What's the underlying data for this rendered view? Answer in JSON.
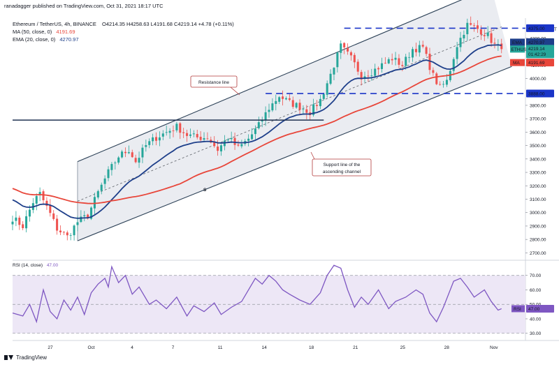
{
  "header": {
    "publisher": "ranadagger published on TradingView.com, Oct 31, 2021 18:17 UTC",
    "symbol_line": "Ethereum / TetherUS, 4h, BINANCE",
    "ohlc": "O4214.35  H4258.63  L4191.68  C4219.14  +4.78 (+0.11%)",
    "ma_line": "MA (50, close, 0)",
    "ma_value": "4191.69",
    "ema_line": "EMA (20, close, 0)",
    "ema_value": "4270.97"
  },
  "rsi_header": {
    "label": "RSI (14, close)",
    "value": "47.00"
  },
  "footer": {
    "brand": "TradingView"
  },
  "price_panel": {
    "currency": "USDT",
    "yticks": [
      2700,
      2800,
      2900,
      3000,
      3100,
      3200,
      3300,
      3400,
      3500,
      3600,
      3700,
      3800,
      4000,
      4100,
      4200,
      4300
    ],
    "yticks_labels": [
      "2700.00",
      "2800.00",
      "2900.00",
      "3000.00",
      "3100.00",
      "3200.00",
      "3300.00",
      "3400.00",
      "3500.00",
      "3600.00",
      "3700.00",
      "3800.00",
      "4000.00",
      "4100.00",
      "4200.00",
      "4300.00"
    ],
    "badges": {
      "level_high": "4375.00",
      "ema_tag": "EMA",
      "ema_value": "4270.97",
      "symbol_tag": "ETHUSDT",
      "price": "4219.14",
      "countdown": "01:42:29",
      "ma_tag": "MA",
      "ma_value": "4191.69",
      "level_low": "3888.00"
    },
    "annotations": {
      "resistance": "Resistance line",
      "support_l1": "Support line of the",
      "support_l2": "ascending channel",
      "s_mark": "S"
    }
  },
  "rsi_panel": {
    "yticks": [
      30,
      40,
      50,
      60,
      70
    ],
    "yticks_labels": [
      "30.00",
      "40.00",
      "50.00",
      "60.00",
      "70.00"
    ],
    "badge_tag": "RSI",
    "badge_value": "47.00"
  },
  "x_axis": {
    "labels": [
      "27",
      "Oct",
      "4",
      "7",
      "11",
      "14",
      "18",
      "21",
      "25",
      "28",
      "Nov",
      "4"
    ]
  },
  "colors": {
    "up": "#26a69a",
    "down": "#ef5350",
    "ema": "#1e3f8a",
    "ma": "#e8463a",
    "level_line": "#1a35c8",
    "channel_fill": "#e8eaf0",
    "channel_line": "#2a3f55",
    "rsi": "#7e57c2",
    "rsi_band": "#ede7f6",
    "annotation": "#b33a3a"
  },
  "chart_data": [
    {
      "type": "candlestick",
      "title": "Ethereum / TetherUS, 4h, BINANCE",
      "ylabel": "USDT",
      "ylim": [
        2650,
        4450
      ],
      "x_labels": [
        "27",
        "Oct",
        "4",
        "7",
        "11",
        "14",
        "18",
        "21",
        "25",
        "28",
        "Nov",
        "4"
      ],
      "close_anchors": [
        {
          "t": 0,
          "v": 2960
        },
        {
          "t": 3,
          "v": 2900
        },
        {
          "t": 6,
          "v": 3080
        },
        {
          "t": 8,
          "v": 3140
        },
        {
          "t": 11,
          "v": 2990
        },
        {
          "t": 13,
          "v": 2880
        },
        {
          "t": 16,
          "v": 2820
        },
        {
          "t": 19,
          "v": 2930
        },
        {
          "t": 22,
          "v": 2980
        },
        {
          "t": 25,
          "v": 3150
        },
        {
          "t": 28,
          "v": 3300
        },
        {
          "t": 31,
          "v": 3420
        },
        {
          "t": 34,
          "v": 3470
        },
        {
          "t": 36,
          "v": 3380
        },
        {
          "t": 39,
          "v": 3500
        },
        {
          "t": 42,
          "v": 3560
        },
        {
          "t": 45,
          "v": 3600
        },
        {
          "t": 48,
          "v": 3640
        },
        {
          "t": 51,
          "v": 3580
        },
        {
          "t": 54,
          "v": 3560
        },
        {
          "t": 57,
          "v": 3560
        },
        {
          "t": 60,
          "v": 3470
        },
        {
          "t": 63,
          "v": 3560
        },
        {
          "t": 66,
          "v": 3480
        },
        {
          "t": 69,
          "v": 3550
        },
        {
          "t": 72,
          "v": 3650
        },
        {
          "t": 75,
          "v": 3780
        },
        {
          "t": 78,
          "v": 3870
        },
        {
          "t": 81,
          "v": 3820
        },
        {
          "t": 84,
          "v": 3790
        },
        {
          "t": 87,
          "v": 3750
        },
        {
          "t": 90,
          "v": 3840
        },
        {
          "t": 93,
          "v": 4030
        },
        {
          "t": 96,
          "v": 4240
        },
        {
          "t": 99,
          "v": 4150
        },
        {
          "t": 102,
          "v": 4020
        },
        {
          "t": 105,
          "v": 4050
        },
        {
          "t": 108,
          "v": 4100
        },
        {
          "t": 111,
          "v": 4150
        },
        {
          "t": 114,
          "v": 4100
        },
        {
          "t": 117,
          "v": 4220
        },
        {
          "t": 120,
          "v": 4230
        },
        {
          "t": 123,
          "v": 4020
        },
        {
          "t": 125,
          "v": 3930
        },
        {
          "t": 127,
          "v": 3980
        },
        {
          "t": 130,
          "v": 4250
        },
        {
          "t": 133,
          "v": 4400
        },
        {
          "t": 136,
          "v": 4370
        },
        {
          "t": 139,
          "v": 4320
        },
        {
          "t": 141,
          "v": 4250
        },
        {
          "t": 143,
          "v": 4219
        }
      ],
      "series": [
        {
          "name": "EMA (20, close, 0)",
          "last": 4270.97
        },
        {
          "name": "MA (50, close, 0)",
          "last": 4191.69
        }
      ],
      "horizontal_levels": [
        4375.0,
        3888.0,
        3690.0
      ],
      "channel": {
        "upper": [
          {
            "t": 19,
            "v": 3380
          },
          {
            "t": 140,
            "v": 4680
          }
        ],
        "lower": [
          {
            "t": 19,
            "v": 2790
          },
          {
            "t": 146,
            "v": 4090
          }
        ],
        "mid": [
          {
            "t": 19,
            "v": 3085
          },
          {
            "t": 143,
            "v": 4385
          }
        ]
      }
    },
    {
      "type": "line",
      "title": "RSI (14, close)",
      "ylim": [
        26,
        80
      ],
      "guide_lines": [
        70,
        50,
        30
      ],
      "points": [
        {
          "t": 0,
          "v": 44
        },
        {
          "t": 3,
          "v": 42
        },
        {
          "t": 5,
          "v": 50
        },
        {
          "t": 7,
          "v": 38
        },
        {
          "t": 9,
          "v": 60
        },
        {
          "t": 11,
          "v": 45
        },
        {
          "t": 13,
          "v": 40
        },
        {
          "t": 15,
          "v": 53
        },
        {
          "t": 17,
          "v": 46
        },
        {
          "t": 19,
          "v": 55
        },
        {
          "t": 21,
          "v": 43
        },
        {
          "t": 23,
          "v": 58
        },
        {
          "t": 25,
          "v": 64
        },
        {
          "t": 27,
          "v": 68
        },
        {
          "t": 28,
          "v": 62
        },
        {
          "t": 29,
          "v": 76
        },
        {
          "t": 31,
          "v": 65
        },
        {
          "t": 33,
          "v": 70
        },
        {
          "t": 35,
          "v": 57
        },
        {
          "t": 37,
          "v": 62
        },
        {
          "t": 40,
          "v": 50
        },
        {
          "t": 42,
          "v": 53
        },
        {
          "t": 45,
          "v": 47
        },
        {
          "t": 48,
          "v": 55
        },
        {
          "t": 51,
          "v": 42
        },
        {
          "t": 53,
          "v": 49
        },
        {
          "t": 56,
          "v": 45
        },
        {
          "t": 59,
          "v": 51
        },
        {
          "t": 61,
          "v": 43
        },
        {
          "t": 64,
          "v": 48
        },
        {
          "t": 67,
          "v": 52
        },
        {
          "t": 69,
          "v": 60
        },
        {
          "t": 71,
          "v": 68
        },
        {
          "t": 73,
          "v": 64
        },
        {
          "t": 75,
          "v": 70
        },
        {
          "t": 77,
          "v": 66
        },
        {
          "t": 79,
          "v": 60
        },
        {
          "t": 81,
          "v": 57
        },
        {
          "t": 84,
          "v": 53
        },
        {
          "t": 87,
          "v": 50
        },
        {
          "t": 90,
          "v": 58
        },
        {
          "t": 92,
          "v": 70
        },
        {
          "t": 94,
          "v": 77
        },
        {
          "t": 96,
          "v": 75
        },
        {
          "t": 98,
          "v": 60
        },
        {
          "t": 100,
          "v": 48
        },
        {
          "t": 102,
          "v": 55
        },
        {
          "t": 104,
          "v": 50
        },
        {
          "t": 107,
          "v": 60
        },
        {
          "t": 110,
          "v": 47
        },
        {
          "t": 112,
          "v": 52
        },
        {
          "t": 115,
          "v": 55
        },
        {
          "t": 118,
          "v": 60
        },
        {
          "t": 120,
          "v": 57
        },
        {
          "t": 122,
          "v": 44
        },
        {
          "t": 124,
          "v": 38
        },
        {
          "t": 126,
          "v": 48
        },
        {
          "t": 129,
          "v": 66
        },
        {
          "t": 131,
          "v": 68
        },
        {
          "t": 133,
          "v": 62
        },
        {
          "t": 135,
          "v": 55
        },
        {
          "t": 138,
          "v": 60
        },
        {
          "t": 140,
          "v": 52
        },
        {
          "t": 142,
          "v": 46
        },
        {
          "t": 143,
          "v": 47
        }
      ]
    }
  ]
}
